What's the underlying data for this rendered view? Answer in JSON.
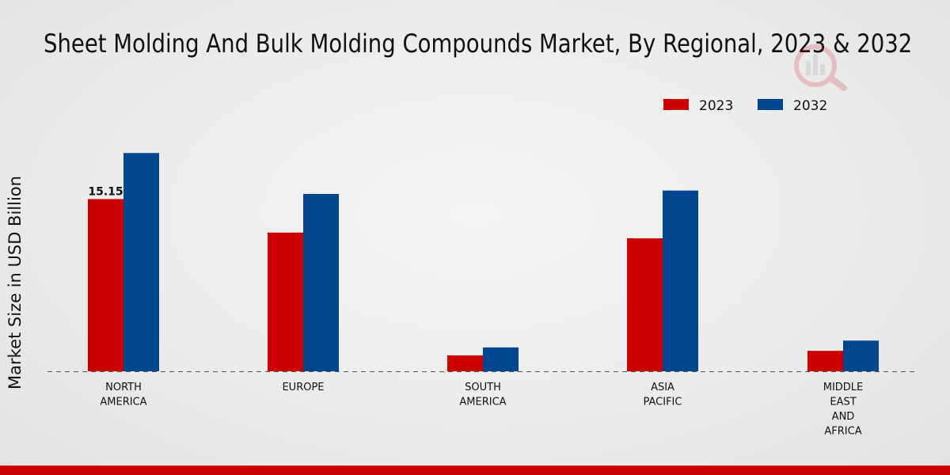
{
  "chart_data": {
    "type": "bar",
    "title": "Sheet Molding And Bulk Molding Compounds Market, By Regional, 2023 & 2032",
    "ylabel": "Market Size in USD Billion",
    "xlabel": "",
    "categories": [
      [
        "NORTH",
        "AMERICA"
      ],
      [
        "EUROPE"
      ],
      [
        "SOUTH",
        "AMERICA"
      ],
      [
        "ASIA",
        "PACIFIC"
      ],
      [
        "MIDDLE",
        "EAST",
        "AND",
        "AFRICA"
      ]
    ],
    "series": [
      {
        "name": "2023",
        "color": "#cc0000",
        "values": [
          15.15,
          12.2,
          1.4,
          11.7,
          1.8
        ]
      },
      {
        "name": "2032",
        "color": "#00478f",
        "values": [
          19.2,
          15.6,
          2.1,
          15.9,
          2.7
        ]
      }
    ],
    "data_labels": [
      {
        "series": 0,
        "index": 0,
        "text": "15.15"
      }
    ],
    "ylim": [
      0,
      25
    ],
    "grid": false,
    "legend_position": "top-right",
    "baseline_style": "dashed"
  }
}
